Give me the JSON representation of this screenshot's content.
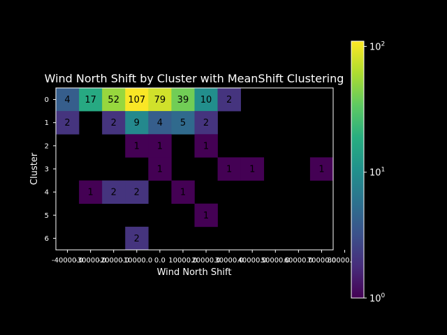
{
  "chart_data": {
    "type": "heatmap",
    "title": "Wind North Shift by Cluster with MeanShift Clustering",
    "xlabel": "Wind North Shift",
    "ylabel": "Cluster",
    "x_tick_labels": [
      "-40000.0",
      "-30000.0",
      "-20000.0",
      "-10000.0",
      "0.0",
      "10000.0",
      "20000.0",
      "30000.0",
      "40000.0",
      "50000.0",
      "60000.0",
      "70000.0",
      "80000.0+"
    ],
    "y_tick_labels": [
      "0",
      "1",
      "2",
      "3",
      "4",
      "5",
      "6"
    ],
    "color_scale": "log",
    "colormap": "viridis",
    "colorbar": {
      "range": [
        1,
        110
      ],
      "ticks": [
        {
          "value": 1,
          "base": "10",
          "exp": "0"
        },
        {
          "value": 10,
          "base": "10",
          "exp": "1"
        },
        {
          "value": 100,
          "base": "10",
          "exp": "2"
        }
      ]
    },
    "cells": [
      {
        "row": 0,
        "col": 0,
        "value": 4
      },
      {
        "row": 0,
        "col": 1,
        "value": 17
      },
      {
        "row": 0,
        "col": 2,
        "value": 52
      },
      {
        "row": 0,
        "col": 3,
        "value": 107
      },
      {
        "row": 0,
        "col": 4,
        "value": 79
      },
      {
        "row": 0,
        "col": 5,
        "value": 39
      },
      {
        "row": 0,
        "col": 6,
        "value": 10
      },
      {
        "row": 0,
        "col": 7,
        "value": 2
      },
      {
        "row": 1,
        "col": 0,
        "value": 2
      },
      {
        "row": 1,
        "col": 2,
        "value": 2
      },
      {
        "row": 1,
        "col": 3,
        "value": 9
      },
      {
        "row": 1,
        "col": 4,
        "value": 4
      },
      {
        "row": 1,
        "col": 5,
        "value": 5
      },
      {
        "row": 1,
        "col": 6,
        "value": 2
      },
      {
        "row": 2,
        "col": 3,
        "value": 1
      },
      {
        "row": 2,
        "col": 4,
        "value": 1
      },
      {
        "row": 2,
        "col": 6,
        "value": 1
      },
      {
        "row": 3,
        "col": 4,
        "value": 1
      },
      {
        "row": 3,
        "col": 7,
        "value": 1
      },
      {
        "row": 3,
        "col": 8,
        "value": 1
      },
      {
        "row": 3,
        "col": 11,
        "value": 1
      },
      {
        "row": 4,
        "col": 1,
        "value": 1
      },
      {
        "row": 4,
        "col": 2,
        "value": 2
      },
      {
        "row": 4,
        "col": 3,
        "value": 2
      },
      {
        "row": 4,
        "col": 5,
        "value": 1
      },
      {
        "row": 5,
        "col": 6,
        "value": 1
      },
      {
        "row": 6,
        "col": 3,
        "value": 2
      }
    ]
  }
}
